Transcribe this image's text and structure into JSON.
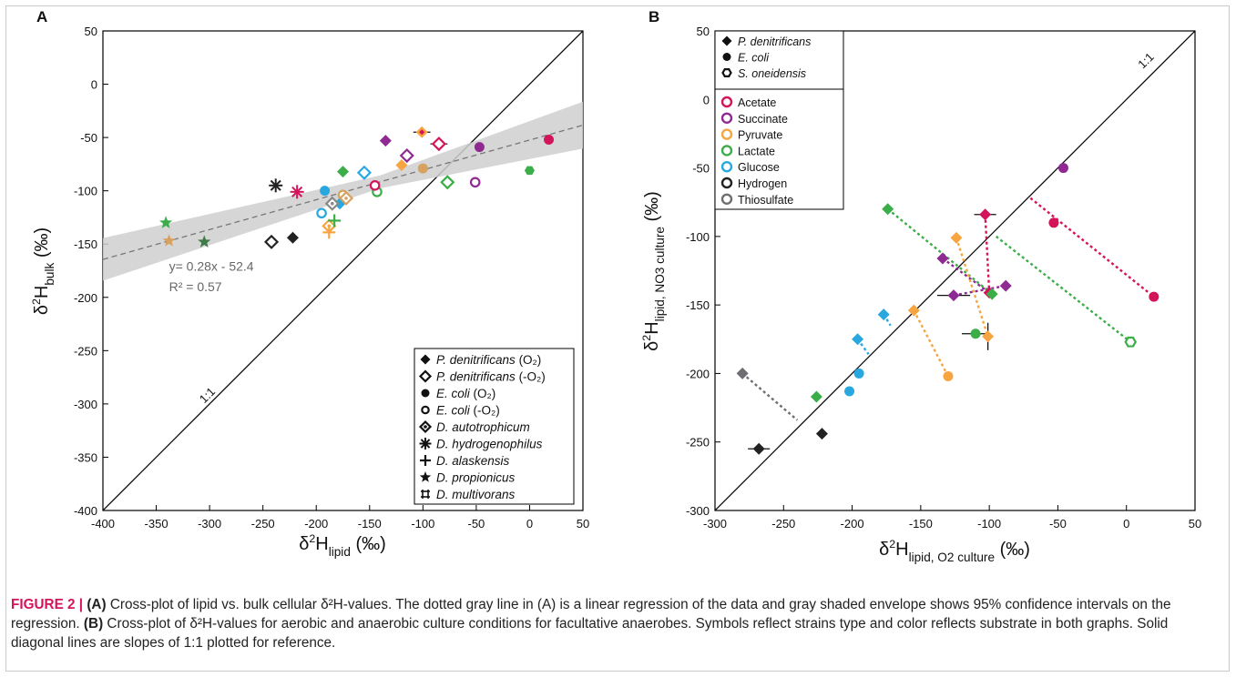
{
  "colors": {
    "acetate": "#d4145a",
    "succinate": "#8e2a91",
    "pyruvate": "#f7a541",
    "lactate": "#3cae49",
    "glucose": "#29a8e0",
    "hydrogen": "#222222",
    "thiosulfate": "#6d6e71",
    "dark_green": "#3f7a4a",
    "tan": "#d7a160",
    "gray": "#888888",
    "axis": "#000000"
  },
  "caption": {
    "label": "FIGURE 2 |",
    "a_tag": "(A)",
    "a_text": " Cross-plot of lipid vs. bulk cellular δ²H-values. The dotted gray line in (A) is a linear regression of the data and gray shaded envelope shows 95% confidence intervals on the regression. ",
    "b_tag": "(B)",
    "b_text": " Cross-plot of δ²H-values for aerobic and anaerobic culture conditions for facultative anaerobes. Symbols reflect strains type and color reflects substrate in both graphs. Solid diagonal lines are slopes of 1:1 plotted for reference."
  },
  "chart_data": [
    {
      "type": "scatter",
      "panel_label": "A",
      "xlim": [
        -400,
        50
      ],
      "ylim": [
        -400,
        50
      ],
      "xticks": [
        -400,
        -350,
        -300,
        -250,
        -200,
        -150,
        -100,
        -50,
        0,
        50
      ],
      "yticks": [
        50,
        0,
        -50,
        -100,
        -150,
        -200,
        -250,
        -300,
        -350,
        -400
      ],
      "xlabel": {
        "base": "δ",
        "sup": "2",
        "main": "H",
        "sub": "lipid",
        "unit": "(‰)"
      },
      "ylabel": {
        "base": "δ",
        "sup": "2",
        "main": "H",
        "sub": "bulk",
        "unit": "(‰)"
      },
      "one_to_one_label": "1:1",
      "regression": {
        "slope": 0.28,
        "intercept": -52.4,
        "ci_half_width": [
          20,
          6,
          22
        ],
        "equation": "y= 0.28x - 52.4",
        "r2": "R² = 0.57"
      },
      "legend": {
        "position": "bottom-right",
        "entries": [
          {
            "symbol": "diamond-filled",
            "name": "P. denitrificans",
            "cond": " (O₂)"
          },
          {
            "symbol": "diamond-open",
            "name": "P. denitrificans",
            "cond": " (-O₂)"
          },
          {
            "symbol": "circle-filled",
            "name": "E. coli",
            "cond": " (O₂)"
          },
          {
            "symbol": "circle-open",
            "name": "E. coli",
            "cond": " (-O₂)"
          },
          {
            "symbol": "diamond-dot",
            "name": "D. autotrophicum",
            "cond": ""
          },
          {
            "symbol": "asterisk",
            "name": "D. hydrogenophilus",
            "cond": ""
          },
          {
            "symbol": "plus",
            "name": "D. alaskensis",
            "cond": ""
          },
          {
            "symbol": "star",
            "name": "D. propionicus",
            "cond": ""
          },
          {
            "symbol": "hash",
            "name": "D. multivorans",
            "cond": ""
          }
        ]
      },
      "points": [
        {
          "x": 18,
          "y": -52,
          "symbol": "circle-filled",
          "color": "acetate"
        },
        {
          "x": -47,
          "y": -59,
          "symbol": "circle-filled",
          "color": "succinate"
        },
        {
          "x": -100,
          "y": -79,
          "symbol": "circle-filled",
          "color": "tan"
        },
        {
          "x": 0,
          "y": -81,
          "symbol": "hex-filled",
          "color": "lactate"
        },
        {
          "x": -192,
          "y": -100,
          "symbol": "circle-filled",
          "color": "glucose"
        },
        {
          "x": -51,
          "y": -92,
          "symbol": "circle-open",
          "color": "succinate"
        },
        {
          "x": -143,
          "y": -101,
          "symbol": "circle-open",
          "color": "lactate"
        },
        {
          "x": -145,
          "y": -95,
          "symbol": "circle-open",
          "color": "acetate"
        },
        {
          "x": -175,
          "y": -104,
          "symbol": "circle-open",
          "color": "tan"
        },
        {
          "x": -195,
          "y": -121,
          "symbol": "circle-open",
          "color": "glucose"
        },
        {
          "x": -101,
          "y": -45,
          "symbol": "diamond-filled",
          "color": "pyruvate",
          "xerr": 8
        },
        {
          "x": -101,
          "y": -45,
          "symbol": "diamond-dot-inner",
          "color": "acetate"
        },
        {
          "x": -135,
          "y": -53,
          "symbol": "diamond-filled",
          "color": "succinate"
        },
        {
          "x": -175,
          "y": -82,
          "symbol": "diamond-filled",
          "color": "lactate"
        },
        {
          "x": -120,
          "y": -76,
          "symbol": "diamond-filled",
          "color": "pyruvate"
        },
        {
          "x": -178,
          "y": -112,
          "symbol": "diamond-filled",
          "color": "glucose"
        },
        {
          "x": -222,
          "y": -144,
          "symbol": "diamond-filled",
          "color": "hydrogen"
        },
        {
          "x": -85,
          "y": -56,
          "symbol": "diamond-open",
          "color": "acetate",
          "xerr": 8
        },
        {
          "x": -115,
          "y": -67,
          "symbol": "diamond-open",
          "color": "succinate"
        },
        {
          "x": -155,
          "y": -83,
          "symbol": "diamond-open",
          "color": "glucose"
        },
        {
          "x": -77,
          "y": -92,
          "symbol": "diamond-open",
          "color": "lactate"
        },
        {
          "x": -242,
          "y": -148,
          "symbol": "diamond-open",
          "color": "hydrogen"
        },
        {
          "x": -185,
          "y": -112,
          "symbol": "diamond-dot",
          "color": "gray"
        },
        {
          "x": -172,
          "y": -107,
          "symbol": "diamond-dot",
          "color": "tan"
        },
        {
          "x": -188,
          "y": -133,
          "symbol": "diamond-dot",
          "color": "pyruvate"
        },
        {
          "x": -238,
          "y": -95,
          "symbol": "asterisk",
          "color": "hydrogen"
        },
        {
          "x": -218,
          "y": -101,
          "symbol": "asterisk",
          "color": "acetate"
        },
        {
          "x": -183,
          "y": -128,
          "symbol": "plus",
          "color": "lactate"
        },
        {
          "x": -188,
          "y": -139,
          "symbol": "plus",
          "color": "pyruvate"
        },
        {
          "x": -341,
          "y": -130,
          "symbol": "star",
          "color": "lactate"
        },
        {
          "x": -338,
          "y": -147,
          "symbol": "star",
          "color": "tan"
        },
        {
          "x": -305,
          "y": -148,
          "symbol": "star",
          "color": "dark_green"
        }
      ]
    },
    {
      "type": "scatter",
      "panel_label": "B",
      "xlim": [
        -300,
        50
      ],
      "ylim": [
        -300,
        50
      ],
      "xticks": [
        -300,
        -250,
        -200,
        -150,
        -100,
        -50,
        0,
        50
      ],
      "yticks": [
        50,
        0,
        -50,
        -100,
        -150,
        -200,
        -250,
        -300
      ],
      "xlabel": {
        "base": "δ",
        "sup": "2",
        "main": "H",
        "sub": "lipid, O2 culture",
        "unit": "(‰)"
      },
      "ylabel": {
        "base": "δ",
        "sup": "2",
        "main": "H",
        "sub": "lipid, NO3 culture",
        "unit": "(‰)"
      },
      "one_to_one_label": "1:1",
      "legend": {
        "position": "top-left",
        "strains": [
          {
            "symbol": "diamond-filled",
            "name": "P. denitrificans"
          },
          {
            "symbol": "circle-filled",
            "name": "E. coli"
          },
          {
            "symbol": "hex-open",
            "name": "S. oneidensis"
          }
        ],
        "substrates": [
          {
            "name": "Acetate",
            "color": "acetate"
          },
          {
            "name": "Succinate",
            "color": "succinate"
          },
          {
            "name": "Pyruvate",
            "color": "pyruvate"
          },
          {
            "name": "Lactate",
            "color": "lactate"
          },
          {
            "name": "Glucose",
            "color": "glucose"
          },
          {
            "name": "Hydrogen",
            "color": "hydrogen"
          },
          {
            "name": "Thiosulfate",
            "color": "thiosulfate"
          }
        ]
      },
      "pairs": [
        {
          "color": "acetate",
          "a": {
            "x": -70,
            "y": -72,
            "symbol": "none"
          },
          "b": {
            "x": 20,
            "y": -144,
            "symbol": "circle-filled"
          }
        },
        {
          "color": "acetate",
          "a": {
            "x": -103,
            "y": -84,
            "symbol": "diamond-filled",
            "xerr": 8
          },
          "b": {
            "x": -100,
            "y": -141,
            "symbol": "diamond-filled"
          }
        },
        {
          "color": "acetate",
          "a": {
            "x": -53,
            "y": -90,
            "symbol": "circle-filled"
          },
          "b": null
        },
        {
          "color": "succinate",
          "a": {
            "x": -46,
            "y": -50,
            "symbol": "circle-filled"
          },
          "b": null
        },
        {
          "color": "succinate",
          "a": {
            "x": -134,
            "y": -116,
            "symbol": "diamond-filled"
          },
          "b": {
            "x": -100,
            "y": -141,
            "symbol": "none"
          }
        },
        {
          "color": "succinate",
          "a": {
            "x": -126,
            "y": -143,
            "symbol": "diamond-filled",
            "xerr": 12
          },
          "b": {
            "x": -88,
            "y": -136,
            "symbol": "diamond-filled"
          }
        },
        {
          "color": "lactate",
          "a": {
            "x": -174,
            "y": -80,
            "symbol": "diamond-filled"
          },
          "b": {
            "x": -98,
            "y": -142,
            "symbol": "diamond-filled"
          }
        },
        {
          "color": "lactate",
          "a": {
            "x": -110,
            "y": -171,
            "symbol": "circle-filled",
            "xerr": 10
          },
          "b": null
        },
        {
          "color": "lactate",
          "a": {
            "x": -95,
            "y": -100,
            "symbol": "none"
          },
          "b": {
            "x": 3,
            "y": -177,
            "symbol": "hex-open"
          }
        },
        {
          "color": "pyruvate",
          "a": {
            "x": -124,
            "y": -101,
            "symbol": "diamond-filled"
          },
          "b": {
            "x": -101,
            "y": -173,
            "symbol": "diamond-filled",
            "yerr": 10
          }
        },
        {
          "color": "pyruvate",
          "a": {
            "x": -155,
            "y": -154,
            "symbol": "diamond-filled"
          },
          "b": {
            "x": -130,
            "y": -202,
            "symbol": "circle-filled"
          }
        },
        {
          "color": "glucose",
          "a": {
            "x": -177,
            "y": -157,
            "symbol": "diamond-filled"
          },
          "b": {
            "x": -172,
            "y": -165,
            "symbol": "none"
          }
        },
        {
          "color": "glucose",
          "a": {
            "x": -196,
            "y": -175,
            "symbol": "diamond-filled"
          },
          "b": {
            "x": -188,
            "y": -186,
            "symbol": "none"
          }
        },
        {
          "color": "glucose",
          "a": {
            "x": -195,
            "y": -200,
            "symbol": "circle-filled"
          },
          "b": null
        },
        {
          "color": "glucose",
          "a": {
            "x": -202,
            "y": -213,
            "symbol": "circle-filled"
          },
          "b": null
        },
        {
          "color": "lactate",
          "a": {
            "x": -226,
            "y": -217,
            "symbol": "diamond-filled"
          },
          "b": null
        },
        {
          "color": "thiosulfate",
          "a": {
            "x": -280,
            "y": -200,
            "symbol": "diamond-filled"
          },
          "b": {
            "x": -240,
            "y": -234,
            "symbol": "none"
          }
        },
        {
          "color": "hydrogen",
          "a": {
            "x": -268,
            "y": -255,
            "symbol": "diamond-filled",
            "xerr": 8
          },
          "b": null
        },
        {
          "color": "hydrogen",
          "a": {
            "x": -222,
            "y": -244,
            "symbol": "diamond-filled"
          },
          "b": null
        }
      ]
    }
  ]
}
